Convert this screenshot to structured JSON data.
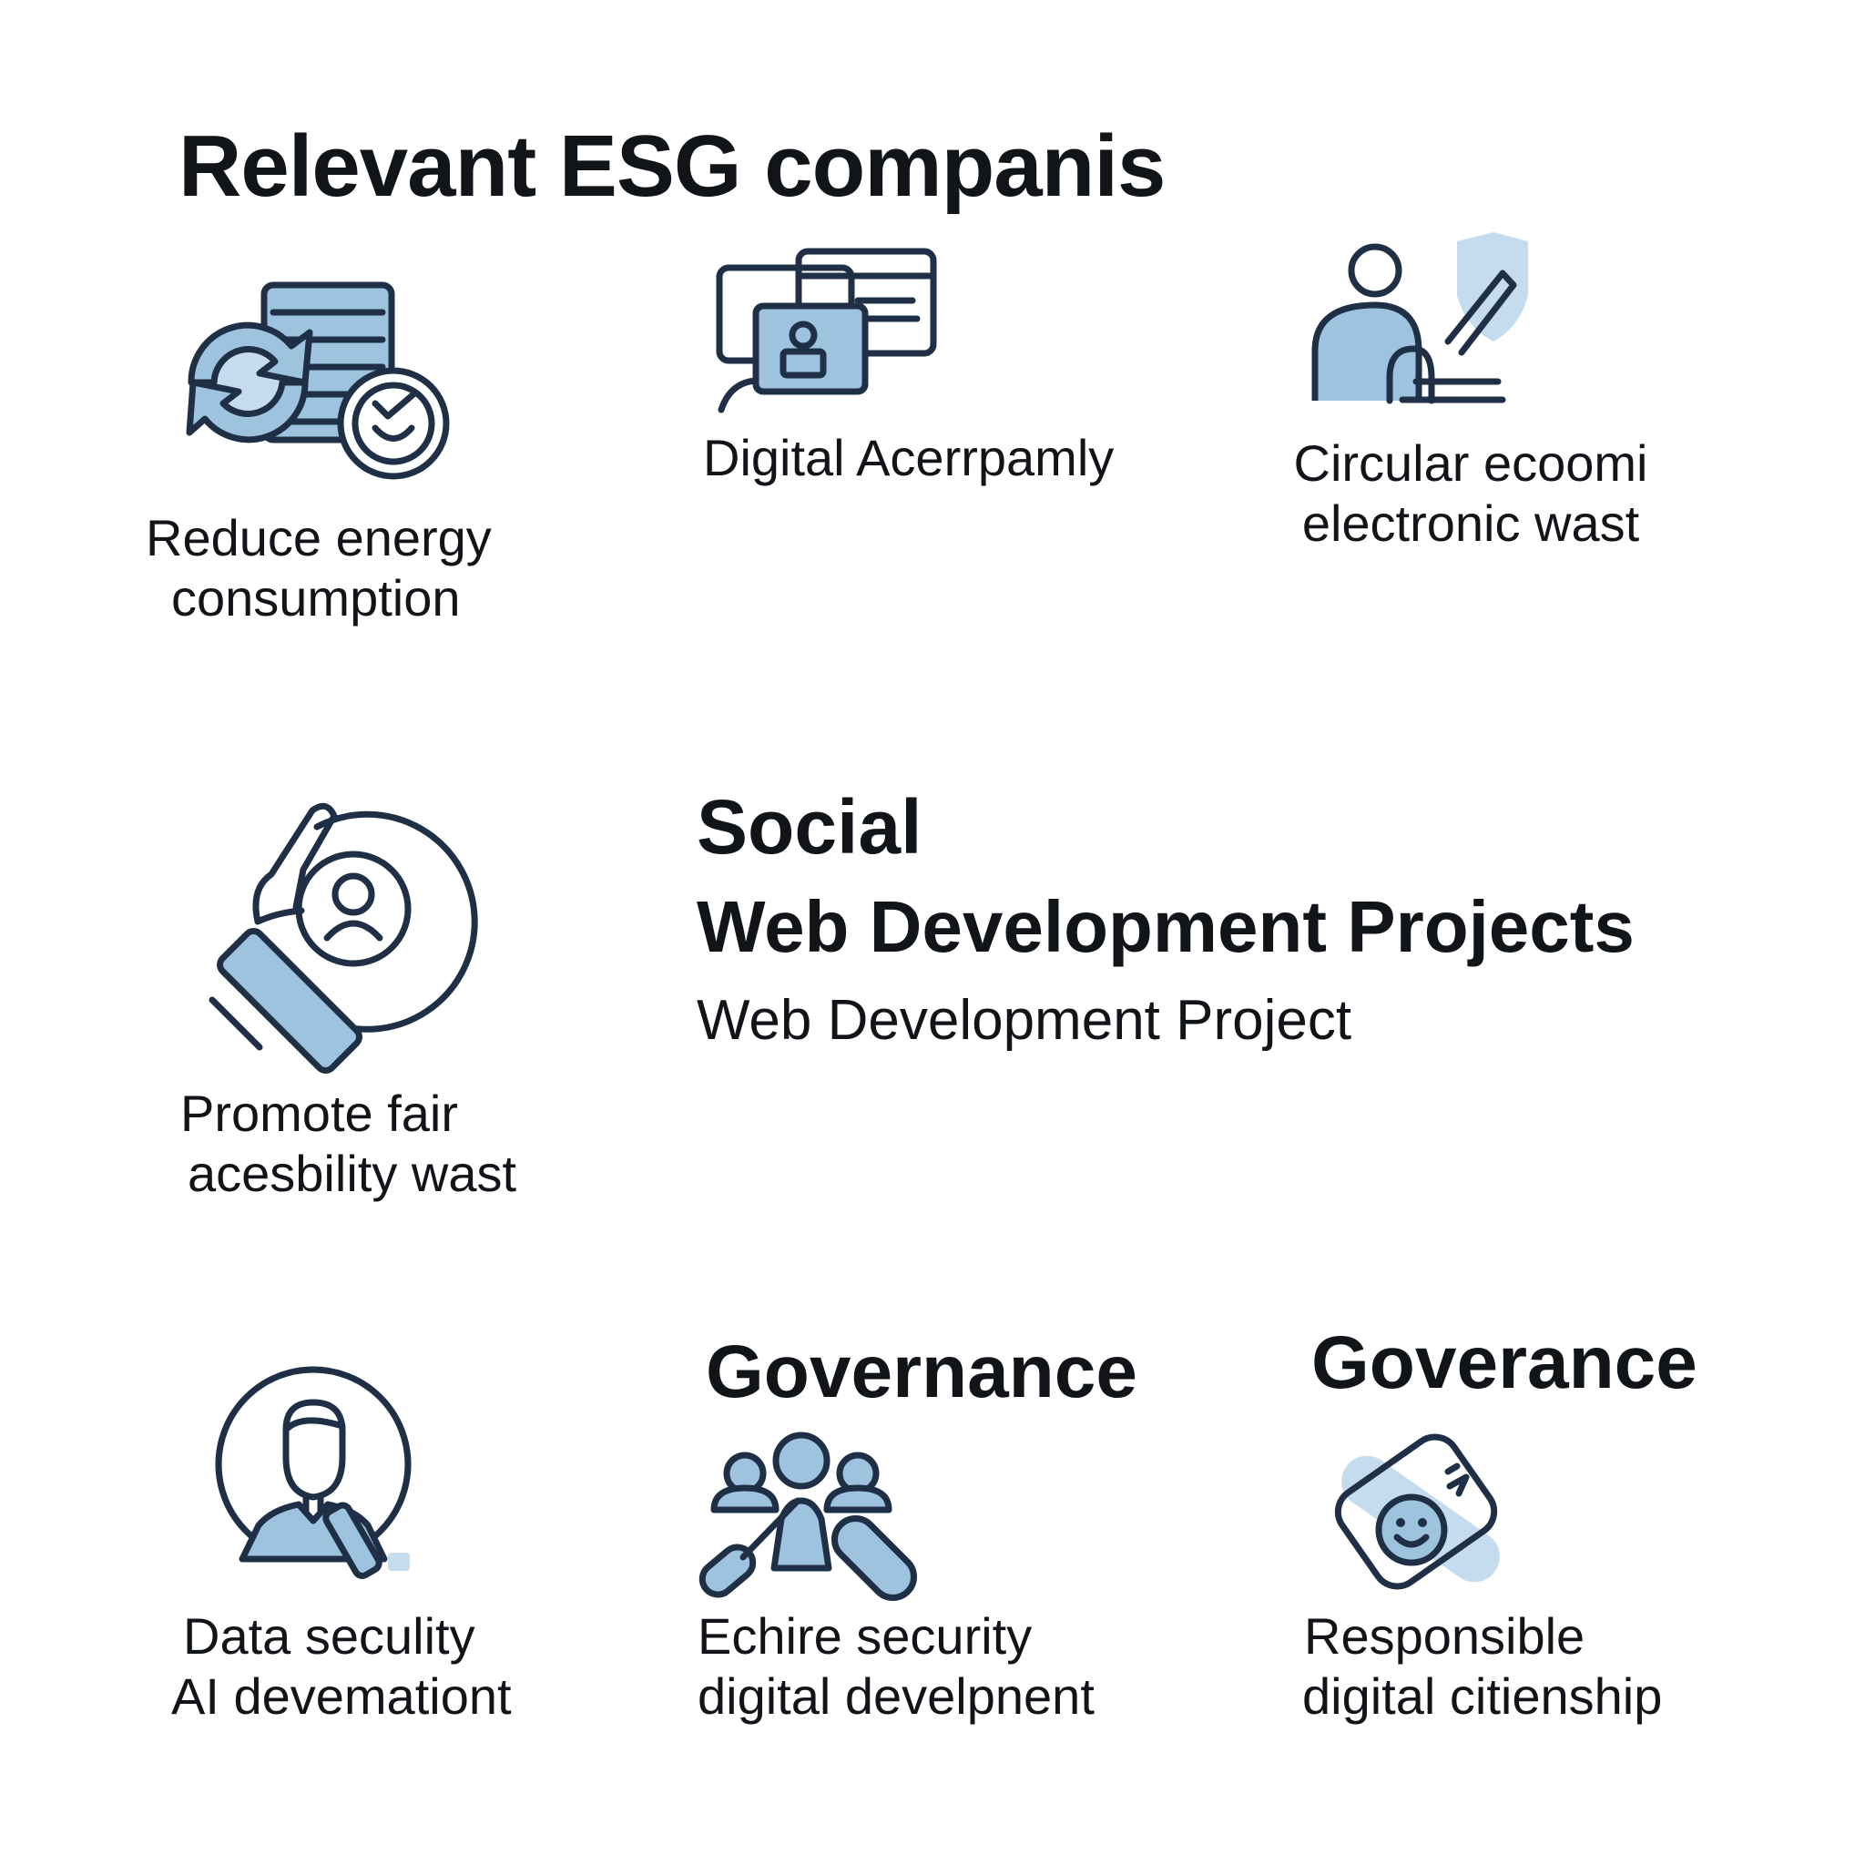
{
  "title": "Relevant ESG companis",
  "items": [
    {
      "icon": "energy-recycle-server-icon",
      "lines": [
        "Reduce energy",
        "consumption"
      ]
    },
    {
      "icon": "digital-screens-icon",
      "lines": [
        "Digital Acerrpamly"
      ]
    },
    {
      "icon": "person-shield-icon",
      "lines": [
        "Circular ecoomi",
        "electronic wast"
      ]
    },
    {
      "icon": "hand-user-circle-icon",
      "lines": [
        "Promote fair",
        "acesbility wast"
      ]
    },
    {
      "icon": "person-circle-icon",
      "lines": [
        "Data seculity",
        "AI devemationt"
      ]
    },
    {
      "icon": "team-tools-icon",
      "lines": [
        "Echire security",
        "digital develpnent"
      ]
    },
    {
      "icon": "smiley-badge-icon",
      "lines": [
        "Responsible",
        "digital citienship"
      ]
    }
  ],
  "social": {
    "heading": "Social",
    "subheading": "Web Development Projects",
    "caption": "Web Development Project"
  },
  "governance": {
    "heading_1": "Governance",
    "heading_2": "Goverance"
  },
  "colors": {
    "ink": "#1f2f45",
    "accent": "#9ec3df",
    "accent_light": "#c5dcee"
  }
}
